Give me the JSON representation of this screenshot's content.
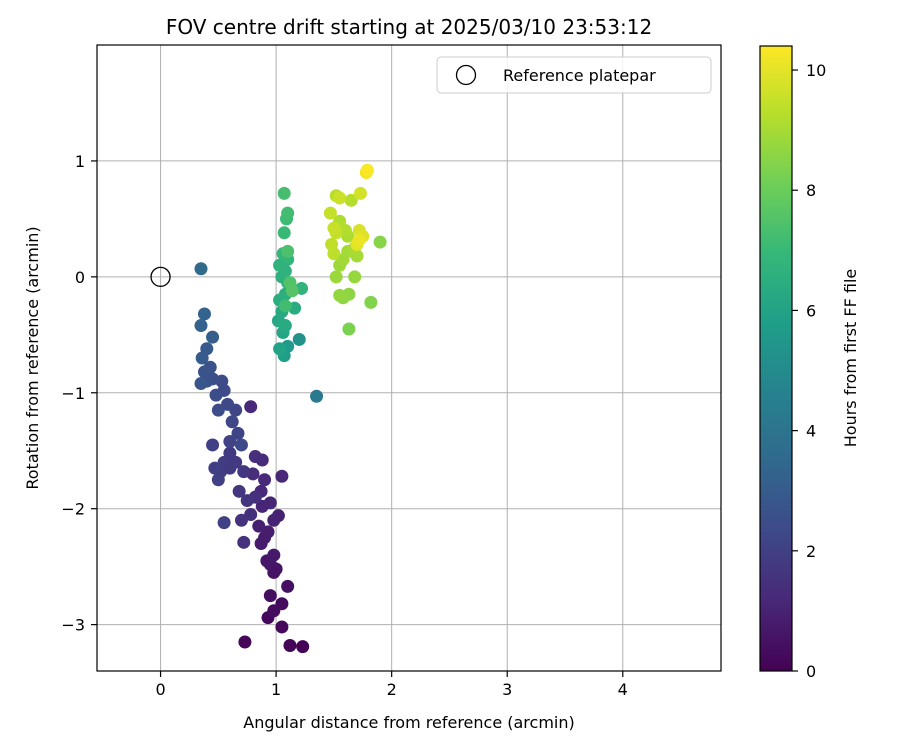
{
  "chart_data": {
    "type": "scatter",
    "title": "FOV centre drift starting at 2025/03/10 23:53:12",
    "xlabel": "Angular distance from reference (arcmin)",
    "ylabel": "Rotation from reference (arcmin)",
    "xlim": [
      -0.55,
      4.85
    ],
    "ylim": [
      -3.4,
      2.0
    ],
    "xticks": [
      0,
      1,
      2,
      3,
      4
    ],
    "yticks": [
      1,
      0,
      -1,
      -2,
      -3
    ],
    "grid": true,
    "legend": {
      "position": "top-right",
      "entries": [
        "Reference platepar"
      ]
    },
    "reference_point": {
      "x": 0,
      "y": 0,
      "label": "Reference platepar",
      "marker": "open-circle"
    },
    "colorbar": {
      "label": "Hours from first FF file",
      "range": [
        0,
        10.4
      ],
      "ticks": [
        0,
        2,
        4,
        6,
        8,
        10
      ],
      "colormap": "viridis",
      "colors": [
        "#440154",
        "#482878",
        "#3e4989",
        "#31688e",
        "#26828e",
        "#1f9e89",
        "#35b779",
        "#6ece58",
        "#b5de2b",
        "#fde725"
      ]
    },
    "points": [
      {
        "x": 1.23,
        "y": -3.19,
        "h": 0.05
      },
      {
        "x": 1.12,
        "y": -3.18,
        "h": 0.1
      },
      {
        "x": 0.73,
        "y": -3.15,
        "h": 0.15
      },
      {
        "x": 1.05,
        "y": -3.02,
        "h": 0.2
      },
      {
        "x": 0.93,
        "y": -2.94,
        "h": 0.25
      },
      {
        "x": 1.05,
        "y": -2.82,
        "h": 0.3
      },
      {
        "x": 0.98,
        "y": -2.88,
        "h": 0.35
      },
      {
        "x": 0.95,
        "y": -2.75,
        "h": 0.4
      },
      {
        "x": 1.1,
        "y": -2.67,
        "h": 0.45
      },
      {
        "x": 0.98,
        "y": -2.55,
        "h": 0.5
      },
      {
        "x": 1.0,
        "y": -2.52,
        "h": 0.55
      },
      {
        "x": 0.95,
        "y": -2.48,
        "h": 0.6
      },
      {
        "x": 0.92,
        "y": -2.45,
        "h": 0.65
      },
      {
        "x": 0.98,
        "y": -2.4,
        "h": 0.7
      },
      {
        "x": 0.87,
        "y": -2.3,
        "h": 0.75
      },
      {
        "x": 0.9,
        "y": -2.25,
        "h": 0.8
      },
      {
        "x": 0.93,
        "y": -2.2,
        "h": 0.85
      },
      {
        "x": 0.85,
        "y": -2.15,
        "h": 0.9
      },
      {
        "x": 1.02,
        "y": -2.06,
        "h": 0.95
      },
      {
        "x": 0.98,
        "y": -2.1,
        "h": 1.0
      },
      {
        "x": 0.88,
        "y": -1.98,
        "h": 1.05
      },
      {
        "x": 0.95,
        "y": -1.95,
        "h": 1.1
      },
      {
        "x": 1.05,
        "y": -1.72,
        "h": 1.15
      },
      {
        "x": 0.87,
        "y": -1.85,
        "h": 1.2
      },
      {
        "x": 0.9,
        "y": -1.75,
        "h": 1.25
      },
      {
        "x": 0.88,
        "y": -1.58,
        "h": 1.3
      },
      {
        "x": 0.8,
        "y": -1.7,
        "h": 1.35
      },
      {
        "x": 0.82,
        "y": -1.9,
        "h": 1.4
      },
      {
        "x": 0.78,
        "y": -2.05,
        "h": 1.45
      },
      {
        "x": 0.72,
        "y": -2.29,
        "h": 1.5
      },
      {
        "x": 0.7,
        "y": -2.1,
        "h": 1.55
      },
      {
        "x": 0.75,
        "y": -1.93,
        "h": 1.6
      },
      {
        "x": 0.68,
        "y": -1.85,
        "h": 1.65
      },
      {
        "x": 0.72,
        "y": -1.68,
        "h": 1.7
      },
      {
        "x": 0.65,
        "y": -1.6,
        "h": 1.75
      },
      {
        "x": 0.6,
        "y": -1.52,
        "h": 1.8
      },
      {
        "x": 0.55,
        "y": -1.6,
        "h": 1.85
      },
      {
        "x": 0.52,
        "y": -1.68,
        "h": 1.9
      },
      {
        "x": 0.47,
        "y": -1.65,
        "h": 1.95
      },
      {
        "x": 0.45,
        "y": -1.45,
        "h": 2.0
      },
      {
        "x": 0.55,
        "y": -2.12,
        "h": 2.05
      },
      {
        "x": 0.6,
        "y": -1.42,
        "h": 2.1
      },
      {
        "x": 0.67,
        "y": -1.35,
        "h": 2.15
      },
      {
        "x": 0.65,
        "y": -1.15,
        "h": 2.2
      },
      {
        "x": 0.62,
        "y": -1.25,
        "h": 2.25
      },
      {
        "x": 0.58,
        "y": -1.1,
        "h": 2.3
      },
      {
        "x": 0.55,
        "y": -0.98,
        "h": 2.35
      },
      {
        "x": 0.53,
        "y": -0.9,
        "h": 2.4
      },
      {
        "x": 0.5,
        "y": -1.15,
        "h": 2.45
      },
      {
        "x": 0.48,
        "y": -1.02,
        "h": 2.5
      },
      {
        "x": 0.45,
        "y": -0.88,
        "h": 2.55
      },
      {
        "x": 0.43,
        "y": -0.78,
        "h": 2.6
      },
      {
        "x": 0.4,
        "y": -0.9,
        "h": 2.65
      },
      {
        "x": 0.38,
        "y": -0.82,
        "h": 2.7
      },
      {
        "x": 0.35,
        "y": -0.92,
        "h": 2.8
      },
      {
        "x": 0.4,
        "y": -0.62,
        "h": 2.9
      },
      {
        "x": 0.36,
        "y": -0.7,
        "h": 3.0
      },
      {
        "x": 0.45,
        "y": -0.52,
        "h": 3.1
      },
      {
        "x": 0.35,
        "y": -0.42,
        "h": 3.2
      },
      {
        "x": 0.38,
        "y": -0.32,
        "h": 3.3
      },
      {
        "x": 0.35,
        "y": 0.07,
        "h": 3.6
      },
      {
        "x": 1.35,
        "y": -1.03,
        "h": 4.2
      },
      {
        "x": 0.5,
        "y": -1.75,
        "h": 2.0
      },
      {
        "x": 0.7,
        "y": -1.45,
        "h": 2.3
      },
      {
        "x": 0.78,
        "y": -1.12,
        "h": 1.2
      },
      {
        "x": 0.6,
        "y": -1.65,
        "h": 1.8
      },
      {
        "x": 0.82,
        "y": -1.55,
        "h": 1.4
      },
      {
        "x": 1.2,
        "y": -0.54,
        "h": 5.3
      },
      {
        "x": 1.1,
        "y": -0.6,
        "h": 5.6
      },
      {
        "x": 1.07,
        "y": -0.68,
        "h": 5.8
      },
      {
        "x": 1.03,
        "y": -0.62,
        "h": 6.0
      },
      {
        "x": 1.06,
        "y": -0.48,
        "h": 6.1
      },
      {
        "x": 1.02,
        "y": -0.38,
        "h": 6.2
      },
      {
        "x": 1.05,
        "y": -0.3,
        "h": 6.3
      },
      {
        "x": 1.08,
        "y": -0.42,
        "h": 6.35
      },
      {
        "x": 1.16,
        "y": -0.27,
        "h": 6.4
      },
      {
        "x": 1.03,
        "y": -0.2,
        "h": 6.45
      },
      {
        "x": 1.08,
        "y": -0.15,
        "h": 6.5
      },
      {
        "x": 1.1,
        "y": -0.05,
        "h": 6.55
      },
      {
        "x": 1.05,
        "y": 0.0,
        "h": 6.6
      },
      {
        "x": 1.08,
        "y": 0.05,
        "h": 6.65
      },
      {
        "x": 1.03,
        "y": 0.1,
        "h": 6.7
      },
      {
        "x": 1.22,
        "y": -0.1,
        "h": 6.75
      },
      {
        "x": 1.1,
        "y": 0.15,
        "h": 6.8
      },
      {
        "x": 1.06,
        "y": 0.2,
        "h": 6.9
      },
      {
        "x": 1.07,
        "y": 0.38,
        "h": 7.0
      },
      {
        "x": 1.09,
        "y": 0.5,
        "h": 7.1
      },
      {
        "x": 1.1,
        "y": 0.55,
        "h": 7.2
      },
      {
        "x": 1.07,
        "y": 0.72,
        "h": 7.3
      },
      {
        "x": 1.1,
        "y": 0.22,
        "h": 7.4
      },
      {
        "x": 1.12,
        "y": -0.05,
        "h": 7.5
      },
      {
        "x": 1.14,
        "y": -0.12,
        "h": 7.6
      },
      {
        "x": 1.08,
        "y": -0.25,
        "h": 7.2
      },
      {
        "x": 1.63,
        "y": -0.45,
        "h": 8.3
      },
      {
        "x": 1.82,
        "y": -0.22,
        "h": 8.4
      },
      {
        "x": 1.9,
        "y": 0.3,
        "h": 8.5
      },
      {
        "x": 1.63,
        "y": -0.15,
        "h": 8.6
      },
      {
        "x": 1.58,
        "y": -0.18,
        "h": 8.65
      },
      {
        "x": 1.55,
        "y": -0.16,
        "h": 8.7
      },
      {
        "x": 1.68,
        "y": 0.0,
        "h": 8.75
      },
      {
        "x": 1.52,
        "y": 0.0,
        "h": 8.8
      },
      {
        "x": 1.55,
        "y": 0.1,
        "h": 8.85
      },
      {
        "x": 1.58,
        "y": 0.15,
        "h": 8.9
      },
      {
        "x": 1.62,
        "y": 0.22,
        "h": 8.95
      },
      {
        "x": 1.7,
        "y": 0.18,
        "h": 9.0
      },
      {
        "x": 1.68,
        "y": 0.25,
        "h": 9.05
      },
      {
        "x": 1.62,
        "y": 0.35,
        "h": 9.1
      },
      {
        "x": 1.55,
        "y": 0.48,
        "h": 9.15
      },
      {
        "x": 1.6,
        "y": 0.4,
        "h": 9.2
      },
      {
        "x": 1.65,
        "y": 0.66,
        "h": 9.25
      },
      {
        "x": 1.52,
        "y": 0.7,
        "h": 9.3
      },
      {
        "x": 1.5,
        "y": 0.2,
        "h": 9.35
      },
      {
        "x": 1.48,
        "y": 0.28,
        "h": 9.4
      },
      {
        "x": 1.52,
        "y": 0.38,
        "h": 9.45
      },
      {
        "x": 1.47,
        "y": 0.55,
        "h": 9.5
      },
      {
        "x": 1.5,
        "y": 0.42,
        "h": 9.55
      },
      {
        "x": 1.55,
        "y": 0.68,
        "h": 9.6
      },
      {
        "x": 1.73,
        "y": 0.72,
        "h": 9.7
      },
      {
        "x": 1.72,
        "y": 0.4,
        "h": 9.8
      },
      {
        "x": 1.75,
        "y": 0.35,
        "h": 9.9
      },
      {
        "x": 1.7,
        "y": 0.28,
        "h": 10.0
      },
      {
        "x": 1.72,
        "y": 0.32,
        "h": 10.1
      },
      {
        "x": 1.78,
        "y": 0.9,
        "h": 10.2
      },
      {
        "x": 1.79,
        "y": 0.92,
        "h": 10.35
      }
    ]
  }
}
